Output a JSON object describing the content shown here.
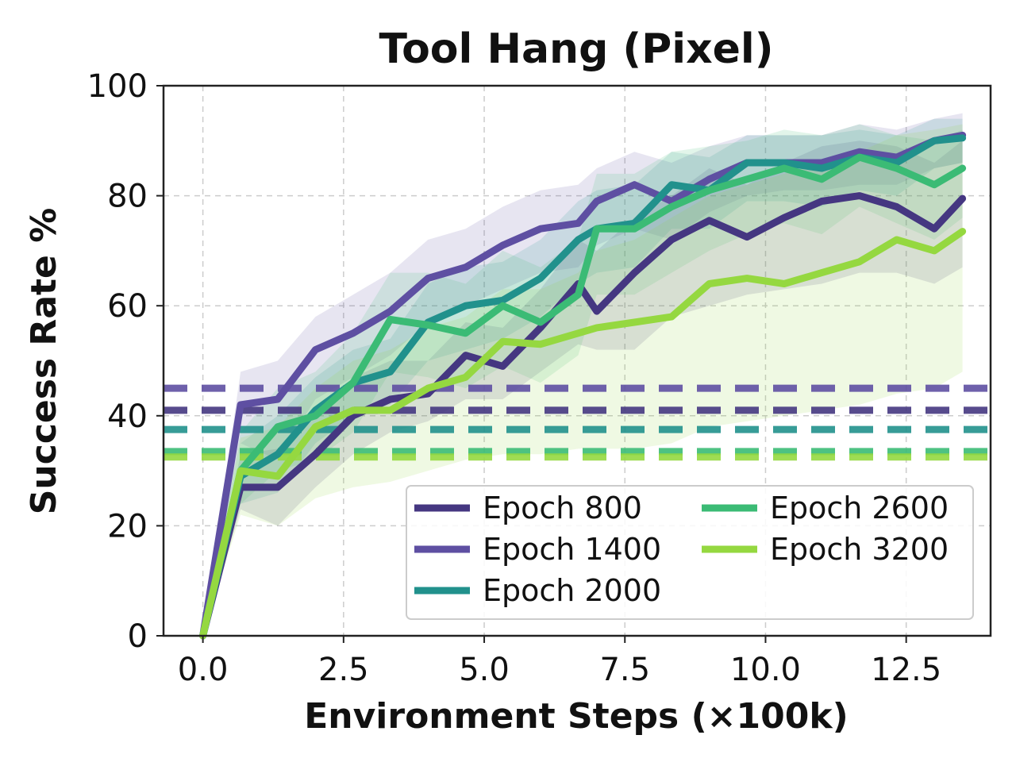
{
  "chart_data": {
    "type": "line",
    "title": "Tool Hang (Pixel)",
    "xlabel": "Environment Steps (×100k)",
    "ylabel": "Success Rate %",
    "xlim": [
      -0.7,
      14.0
    ],
    "ylim": [
      0,
      100
    ],
    "xticks": [
      "0.0",
      "2.5",
      "5.0",
      "7.5",
      "10.0",
      "12.5"
    ],
    "xtick_values": [
      0,
      2.5,
      5,
      7.5,
      10,
      12.5
    ],
    "yticks": [
      "0",
      "20",
      "40",
      "60",
      "80",
      "100"
    ],
    "ytick_values": [
      0,
      20,
      40,
      60,
      80,
      100
    ],
    "grid": true,
    "legend_position": "lower-right",
    "legend_columns": 2,
    "x": [
      0,
      0.67,
      1.33,
      2.0,
      2.67,
      3.33,
      4.0,
      4.67,
      5.33,
      6.0,
      6.67,
      7.0,
      7.67,
      8.33,
      9.0,
      9.67,
      10.33,
      11.0,
      11.67,
      12.33,
      13.0,
      13.5
    ],
    "series": [
      {
        "name": "Epoch 800",
        "color": "#453781",
        "baseline": 41,
        "values": [
          0,
          27,
          27,
          33,
          40,
          43,
          44,
          51,
          49,
          56,
          64,
          59,
          66,
          72,
          75.5,
          72.5,
          76,
          79,
          80,
          78,
          74,
          79.5
        ],
        "band_lower": [
          0,
          23,
          20,
          27,
          33,
          37,
          39,
          43,
          43,
          48,
          53,
          52,
          52,
          58,
          60,
          62,
          63,
          64,
          66,
          66,
          64,
          67
        ],
        "band_upper": [
          0,
          33,
          34,
          40,
          47,
          50,
          50,
          57,
          56,
          63,
          72,
          70,
          76,
          80,
          85,
          82,
          86,
          89,
          90,
          89,
          86,
          90
        ]
      },
      {
        "name": "Epoch 1400",
        "color": "#5e4fa2",
        "baseline": 45,
        "values": [
          0,
          42,
          43,
          52,
          55,
          59,
          65,
          67,
          71,
          74,
          75,
          79,
          82,
          79,
          83,
          86,
          86,
          86,
          88,
          87,
          90,
          91
        ],
        "band_lower": [
          0,
          35,
          32,
          43,
          47,
          51,
          57,
          60,
          63,
          66,
          67,
          71,
          74,
          72,
          77,
          80,
          81,
          81,
          82,
          82,
          85,
          86
        ],
        "band_upper": [
          0,
          48,
          50,
          58,
          62,
          66,
          72,
          74,
          78,
          81,
          82,
          85,
          88,
          86,
          89,
          91,
          91,
          91,
          93,
          92,
          94,
          95
        ]
      },
      {
        "name": "Epoch 2000",
        "color": "#21918c",
        "baseline": 37.5,
        "values": [
          0,
          29,
          33,
          41,
          46,
          48,
          57,
          60,
          61,
          65,
          72,
          74,
          75,
          82,
          81,
          86,
          86,
          85,
          87,
          86,
          90,
          90.5
        ],
        "band_lower": [
          0,
          24,
          26,
          35,
          40,
          42,
          50,
          52,
          54,
          58,
          64,
          66,
          67,
          74,
          74,
          79,
          79,
          78,
          81,
          80,
          85,
          86
        ],
        "band_upper": [
          0,
          35,
          40,
          47,
          52,
          54,
          64,
          67,
          68,
          72,
          79,
          81,
          82,
          88,
          87,
          91,
          91,
          91,
          92,
          91,
          94,
          94
        ]
      },
      {
        "name": "Epoch 2600",
        "color": "#3bbb75",
        "baseline": 33.5,
        "values": [
          0,
          30,
          38,
          40,
          46,
          57.5,
          56.5,
          55,
          60,
          57,
          62,
          74,
          74,
          78,
          81,
          83,
          85,
          83,
          87,
          85,
          82,
          85
        ],
        "band_lower": [
          0,
          24,
          30,
          32,
          37,
          48,
          47,
          45,
          49,
          46,
          51,
          62,
          62,
          66,
          70,
          73,
          75,
          73,
          78,
          75,
          72,
          76
        ],
        "band_upper": [
          0,
          37,
          45,
          48,
          55,
          66,
          66,
          64,
          70,
          67,
          72,
          84,
          84,
          88,
          89,
          90,
          92,
          91,
          93,
          91,
          90,
          92
        ]
      },
      {
        "name": "Epoch 3200",
        "color": "#95d840",
        "baseline": 32.5,
        "values": [
          0,
          30,
          29,
          38,
          41,
          41,
          45,
          47,
          53.5,
          53,
          55,
          56,
          57,
          58,
          64,
          65,
          64,
          66,
          68,
          72,
          70,
          73.5
        ],
        "band_lower": [
          0,
          22,
          20,
          25,
          27,
          28,
          30,
          32,
          33,
          33,
          34,
          34,
          34,
          35,
          38,
          39,
          40,
          41,
          42,
          44,
          45,
          48
        ],
        "band_upper": [
          0,
          36,
          38,
          45,
          50,
          52,
          56,
          58,
          63,
          63,
          66,
          70,
          72,
          76,
          80,
          82,
          84,
          86,
          88,
          91,
          92,
          93
        ]
      }
    ]
  }
}
